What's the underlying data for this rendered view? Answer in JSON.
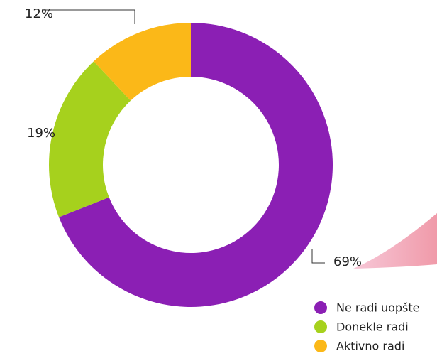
{
  "chart_data": {
    "type": "donut",
    "categories": [
      "Ne radi uopšte",
      "Donekle radi",
      "Aktivno radi"
    ],
    "values": [
      69,
      19,
      12
    ],
    "value_labels": [
      "69%",
      "19%",
      "12%"
    ],
    "colors": [
      "#8b1fb4",
      "#a6d11d",
      "#fbb818"
    ]
  }
}
